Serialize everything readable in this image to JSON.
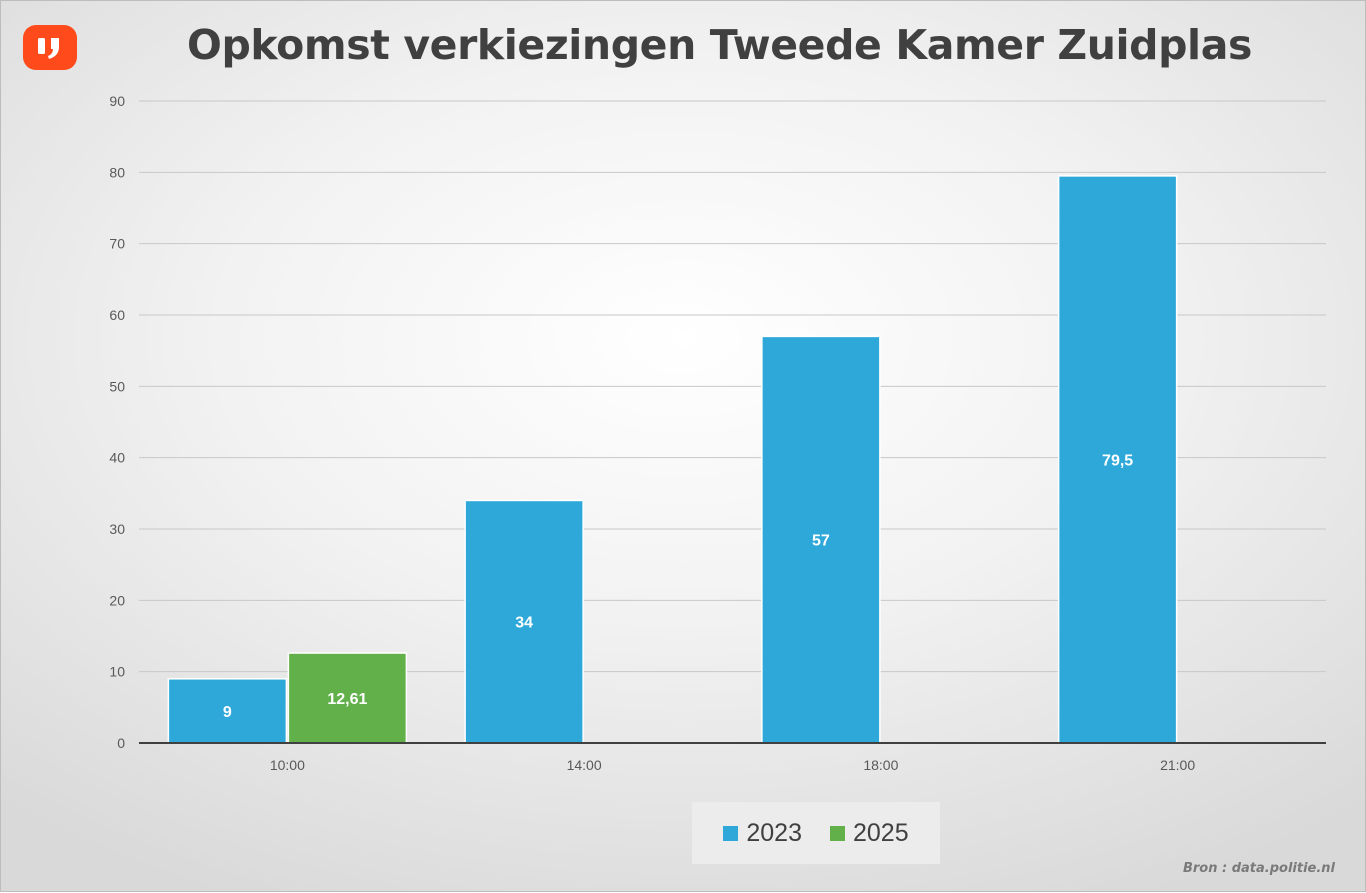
{
  "logo": {
    "icon": "quote-mark-icon",
    "color": "#ff4a1c"
  },
  "chart_data": {
    "type": "bar",
    "title": "Opkomst verkiezingen Tweede Kamer Zuidplas",
    "categories": [
      "10:00",
      "14:00",
      "18:00",
      "21:00"
    ],
    "series": [
      {
        "name": "2023",
        "color": "#2ea8d9",
        "values": [
          9,
          34,
          57,
          79.5
        ],
        "labels": [
          "9",
          "34",
          "57",
          "79,5"
        ]
      },
      {
        "name": "2025",
        "color": "#62b04a",
        "values": [
          12.61,
          null,
          null,
          null
        ],
        "labels": [
          "12,61",
          "",
          "",
          ""
        ]
      }
    ],
    "y_ticks": [
      0,
      10,
      20,
      30,
      40,
      50,
      60,
      70,
      80,
      90
    ],
    "ylim": [
      0,
      90
    ],
    "grid": true,
    "legend_position": "bottom"
  },
  "source": "Bron : data.politie.nl"
}
